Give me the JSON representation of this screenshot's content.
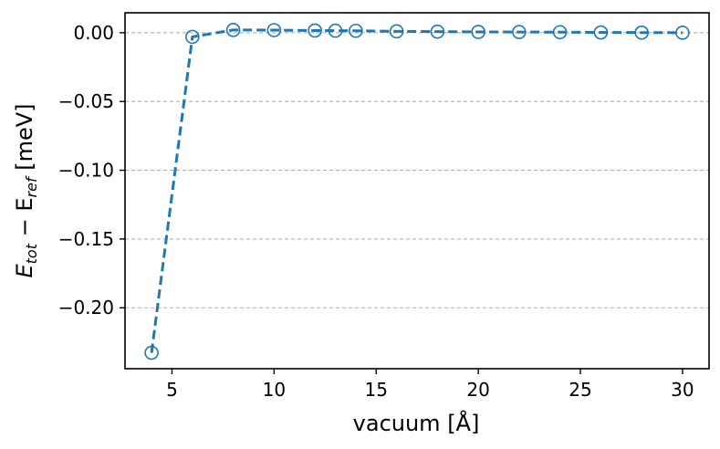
{
  "chart_data": {
    "type": "line",
    "title": "",
    "xlabel": "vacuum [Å]",
    "ylabel": {
      "main": "E",
      "sub1": "tot",
      "minus": " − E",
      "sub2": "ref",
      "unit": " [meV]"
    },
    "xlim": [
      2.7,
      31.3
    ],
    "ylim": [
      -0.2443,
      0.0145
    ],
    "xticks": [
      5,
      10,
      15,
      20,
      25,
      30
    ],
    "xtick_labels": [
      "5",
      "10",
      "15",
      "20",
      "25",
      "30"
    ],
    "yticks": [
      0.0,
      -0.05,
      -0.1,
      -0.15,
      -0.2
    ],
    "ytick_labels": [
      "0.00",
      "−0.05",
      "−0.10",
      "−0.15",
      "−0.20"
    ],
    "grid": "horizontal dashed",
    "series": [
      {
        "color": "#1f77b4",
        "line_style": "dashed",
        "marker": "open-circle",
        "x": [
          4,
          6,
          8,
          10,
          12,
          13,
          14,
          16,
          18,
          20,
          22,
          24,
          26,
          28,
          30
        ],
        "y": [
          -0.2327,
          -0.003,
          0.002,
          0.0019,
          0.0016,
          0.0015,
          0.0014,
          0.001,
          0.0008,
          0.0006,
          0.0005,
          0.0004,
          0.0002,
          0.0001,
          0.0
        ]
      }
    ]
  }
}
